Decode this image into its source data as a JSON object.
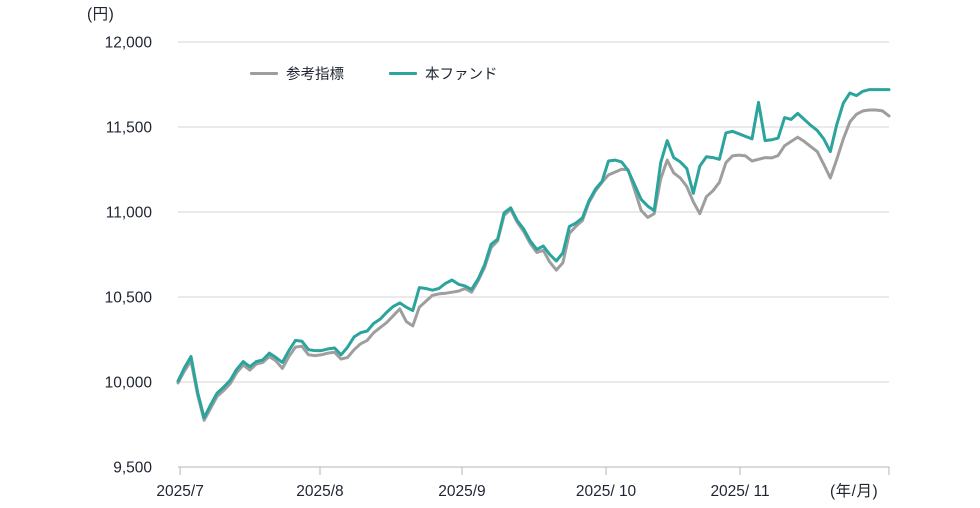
{
  "unit_label": "(円)",
  "x_axis_unit_label": "(年/月)",
  "chart_data": {
    "type": "line",
    "title": "",
    "xlabel": "(年/月)",
    "ylabel": "(円)",
    "ylim": [
      9500,
      12000
    ],
    "grid": true,
    "legend_position": "top-left-inside",
    "grid_color": "#d6d6d6",
    "axis_color": "#b5b5b5",
    "text_color": "#1e2430",
    "y_ticks": [
      {
        "value": 12000,
        "label": "12,000"
      },
      {
        "value": 11500,
        "label": "11,500"
      },
      {
        "value": 11000,
        "label": "11,000"
      },
      {
        "value": 10500,
        "label": "10,500"
      },
      {
        "value": 10000,
        "label": "10,000"
      },
      {
        "value": 9500,
        "label": "9,500"
      }
    ],
    "x_ticks": [
      {
        "f": 0.003,
        "label": "2025/7"
      },
      {
        "f": 0.1997,
        "label": "2025/8"
      },
      {
        "f": 0.3994,
        "label": "2025/9"
      },
      {
        "f": 0.602,
        "label": "2025/ 10"
      },
      {
        "f": 0.7905,
        "label": "2025/ 11"
      },
      {
        "f": 1.0,
        "label": ""
      }
    ],
    "legend": [
      {
        "name": "参考指標",
        "color": "#9e9e9e"
      },
      {
        "name": "本ファンド",
        "color": "#2aa49c"
      }
    ],
    "series": [
      {
        "name": "参考指標",
        "color": "#9e9e9e",
        "values": [
          9995,
          10065,
          10125,
          9925,
          9775,
          9845,
          9915,
          9950,
          9990,
          10055,
          10100,
          10070,
          10105,
          10115,
          10150,
          10125,
          10080,
          10150,
          10205,
          10210,
          10160,
          10155,
          10160,
          10170,
          10175,
          10135,
          10145,
          10190,
          10225,
          10245,
          10290,
          10320,
          10350,
          10390,
          10430,
          10355,
          10330,
          10440,
          10475,
          10510,
          10518,
          10522,
          10528,
          10535,
          10550,
          10528,
          10595,
          10675,
          10790,
          10830,
          10980,
          11015,
          10940,
          10885,
          10815,
          10762,
          10775,
          10705,
          10658,
          10702,
          10875,
          10915,
          10950,
          11055,
          11125,
          11175,
          11218,
          11235,
          11252,
          11248,
          11130,
          11010,
          10968,
          10990,
          11195,
          11305,
          11230,
          11200,
          11150,
          11060,
          10990,
          11090,
          11125,
          11175,
          11290,
          11330,
          11335,
          11330,
          11300,
          11310,
          11320,
          11318,
          11332,
          11390,
          11415,
          11440,
          11415,
          11385,
          11355,
          11280,
          11200,
          11310,
          11430,
          11530,
          11575,
          11595,
          11600,
          11600,
          11595,
          11565
        ]
      },
      {
        "name": "本ファンド",
        "color": "#2aa49c",
        "values": [
          10005,
          10085,
          10150,
          9940,
          9790,
          9865,
          9935,
          9970,
          10010,
          10075,
          10120,
          10090,
          10120,
          10130,
          10170,
          10145,
          10115,
          10185,
          10245,
          10240,
          10190,
          10185,
          10185,
          10195,
          10200,
          10160,
          10205,
          10265,
          10290,
          10300,
          10345,
          10370,
          10410,
          10445,
          10465,
          10440,
          10420,
          10555,
          10550,
          10540,
          10550,
          10580,
          10600,
          10575,
          10565,
          10545,
          10605,
          10690,
          10810,
          10840,
          10995,
          11025,
          10950,
          10900,
          10830,
          10780,
          10800,
          10750,
          10712,
          10760,
          10915,
          10935,
          10965,
          11065,
          11135,
          11180,
          11300,
          11305,
          11295,
          11245,
          11160,
          11075,
          11035,
          11008,
          11290,
          11420,
          11320,
          11295,
          11255,
          11110,
          11270,
          11325,
          11320,
          11310,
          11465,
          11475,
          11460,
          11445,
          11430,
          11645,
          11420,
          11425,
          11435,
          11555,
          11545,
          11580,
          11545,
          11510,
          11480,
          11430,
          11355,
          11515,
          11640,
          11700,
          11685,
          11710,
          11720,
          11720,
          11720,
          11720
        ]
      }
    ]
  }
}
